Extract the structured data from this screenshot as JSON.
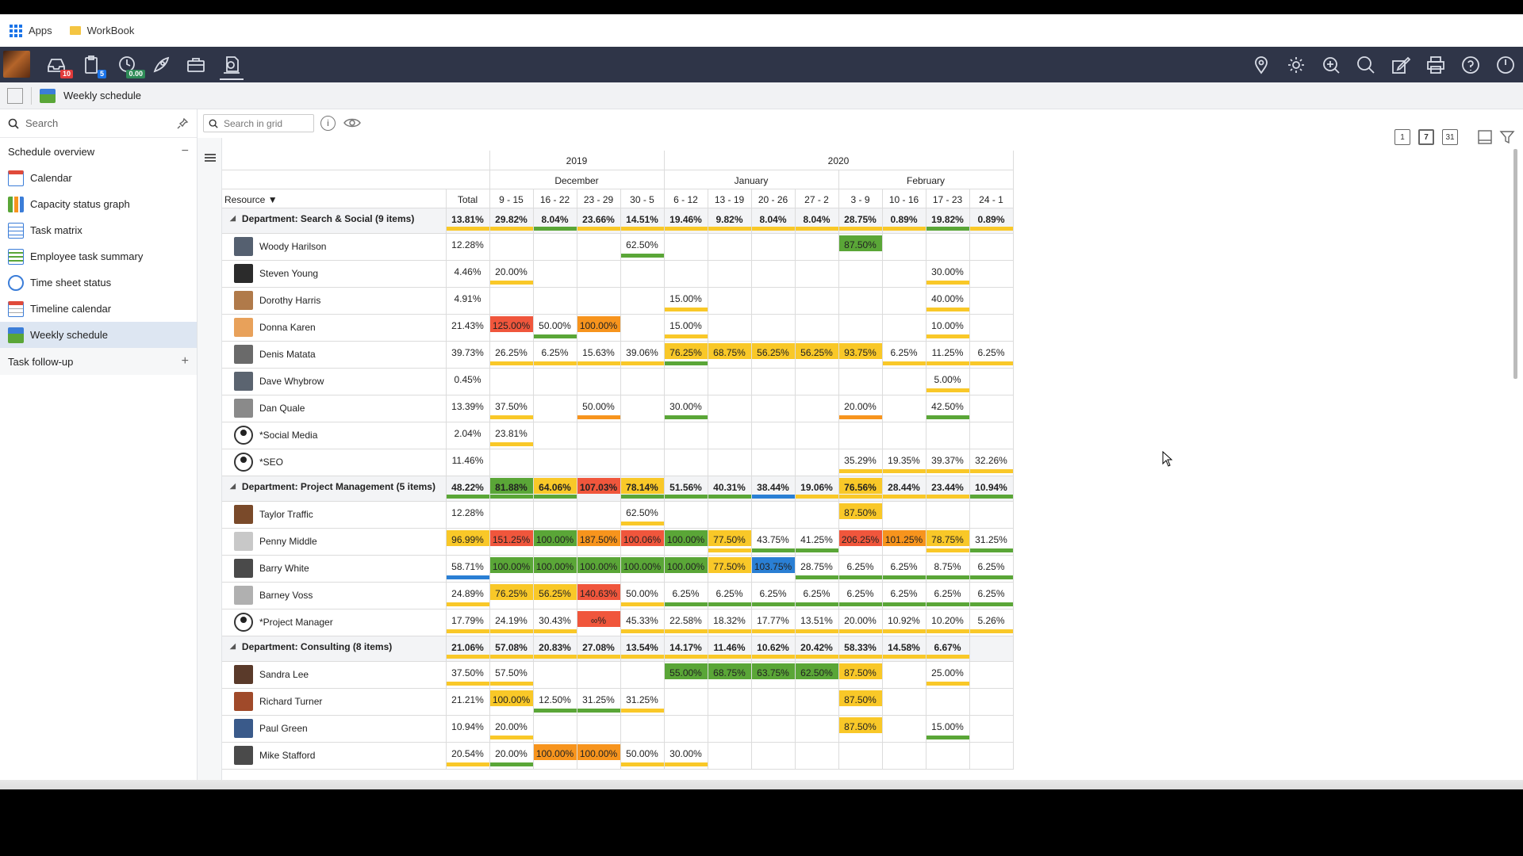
{
  "bookmarks": {
    "apps": "Apps",
    "workbook": "WorkBook"
  },
  "topbar": {
    "badges": [
      {
        "icon": "inbox-icon",
        "value": "10",
        "color": "#e03a3a"
      },
      {
        "icon": "clipboard-icon",
        "value": "5",
        "color": "#1a73e8"
      },
      {
        "icon": "clock-icon",
        "value": "0.00",
        "color": "#2e8b57"
      }
    ],
    "left_icons": [
      "rocket-icon",
      "briefcase-icon",
      "timesheet-icon"
    ],
    "right_icons": [
      "location-icon",
      "settings-icon",
      "search-plus-icon",
      "search-icon",
      "edit-icon",
      "print-icon",
      "help-icon",
      "power-icon"
    ]
  },
  "title": {
    "page": "Weekly schedule"
  },
  "sidebar": {
    "search_placeholder": "Search",
    "section": "Schedule overview",
    "items": [
      "Calendar",
      "Capacity status graph",
      "Task matrix",
      "Employee task summary",
      "Time sheet status",
      "Timeline calendar",
      "Weekly schedule"
    ],
    "active_index": 6,
    "followup": "Task follow-up"
  },
  "grid": {
    "search_placeholder": "Search in grid",
    "view_buttons": [
      "1",
      "7",
      "31"
    ]
  },
  "colors": {
    "green": "#5aa637",
    "yellow": "#f9c828",
    "orange": "#f7941d",
    "red": "#f0563c",
    "blue": "#2a7fd4"
  },
  "schedule": {
    "years": [
      {
        "label": "2019",
        "span": 4
      },
      {
        "label": "2020",
        "span": 8
      }
    ],
    "months": [
      {
        "label": "December",
        "span": 4
      },
      {
        "label": "January",
        "span": 4
      },
      {
        "label": "February",
        "span": 4
      }
    ],
    "resource_label": "Resource",
    "total_label": "Total",
    "weeks": [
      "9 - 15",
      "16 - 22",
      "23 - 29",
      "30 - 5",
      "6 - 12",
      "13 - 19",
      "20 - 26",
      "27 - 2",
      "3 - 9",
      "10 - 16",
      "17 - 23",
      "24 - 1"
    ],
    "rows": [
      {
        "type": "dept",
        "name": "Department: Search & Social (9 items)",
        "total": "13.81%",
        "cells": [
          "29.82%",
          "8.04%",
          "23.66%",
          "14.51%",
          "19.46%",
          "9.82%",
          "8.04%",
          "8.04%",
          "28.75%",
          "0.89%",
          "19.82%",
          "0.89%"
        ],
        "bars": [
          "yellow",
          "green",
          "yellow",
          "yellow",
          "yellow",
          "yellow",
          "yellow",
          "yellow",
          "yellow",
          "yellow",
          "green",
          "yellow"
        ],
        "totalbar": "yellow"
      },
      {
        "type": "res",
        "name": "Woody Harilson",
        "avatar": "#556070",
        "total": "12.28%",
        "cells": [
          "",
          "",
          "",
          "62.50%",
          "",
          "",
          "",
          "",
          "87.50%",
          "",
          "",
          ""
        ],
        "bars": [
          "",
          "",
          "",
          "green",
          "",
          "",
          "",
          "",
          "",
          "",
          "",
          ""
        ],
        "fills": [
          "",
          "",
          "",
          "",
          "",
          "",
          "",
          "",
          "green",
          "",
          "",
          ""
        ]
      },
      {
        "type": "res",
        "name": "Steven Young",
        "avatar": "#2b2b2b",
        "total": "4.46%",
        "cells": [
          "20.00%",
          "",
          "",
          "",
          "",
          "",
          "",
          "",
          "",
          "",
          "30.00%",
          ""
        ],
        "bars": [
          "yellow",
          "",
          "",
          "",
          "",
          "",
          "",
          "",
          "",
          "",
          "yellow",
          ""
        ]
      },
      {
        "type": "res",
        "name": "Dorothy Harris",
        "avatar": "#b07a4a",
        "total": "4.91%",
        "cells": [
          "",
          "",
          "",
          "",
          "15.00%",
          "",
          "",
          "",
          "",
          "",
          "40.00%",
          ""
        ],
        "bars": [
          "",
          "",
          "",
          "",
          "yellow",
          "",
          "",
          "",
          "",
          "",
          "yellow",
          ""
        ]
      },
      {
        "type": "res",
        "name": "Donna Karen",
        "avatar": "#e8a15a",
        "total": "21.43%",
        "cells": [
          "125.00%",
          "50.00%",
          "100.00%",
          "",
          "15.00%",
          "",
          "",
          "",
          "",
          "",
          "10.00%",
          ""
        ],
        "bars": [
          "",
          "green",
          "",
          "",
          "yellow",
          "",
          "",
          "",
          "",
          "",
          "yellow",
          ""
        ],
        "fills": [
          "red",
          "",
          "orange",
          "",
          "",
          "",
          "",
          "",
          "",
          "",
          "",
          ""
        ]
      },
      {
        "type": "res",
        "name": "Denis Matata",
        "avatar": "#6a6a6a",
        "total": "39.73%",
        "cells": [
          "26.25%",
          "6.25%",
          "15.63%",
          "39.06%",
          "76.25%",
          "68.75%",
          "56.25%",
          "56.25%",
          "93.75%",
          "6.25%",
          "11.25%",
          "6.25%"
        ],
        "bars": [
          "yellow",
          "yellow",
          "yellow",
          "yellow",
          "green",
          "",
          "",
          "",
          "",
          "yellow",
          "yellow",
          "yellow"
        ],
        "fills": [
          "",
          "",
          "",
          "",
          "yellow",
          "yellow",
          "yellow",
          "yellow",
          "yellow",
          "",
          "",
          ""
        ]
      },
      {
        "type": "res",
        "name": "Dave Whybrow",
        "avatar": "#5b6470",
        "total": "0.45%",
        "cells": [
          "",
          "",
          "",
          "",
          "",
          "",
          "",
          "",
          "",
          "",
          "5.00%",
          ""
        ],
        "bars": [
          "",
          "",
          "",
          "",
          "",
          "",
          "",
          "",
          "",
          "",
          "yellow",
          ""
        ]
      },
      {
        "type": "res",
        "name": "Dan Quale",
        "avatar": "#8a8a8a",
        "total": "13.39%",
        "cells": [
          "37.50%",
          "",
          "50.00%",
          "",
          "30.00%",
          "",
          "",
          "",
          "20.00%",
          "",
          "42.50%",
          ""
        ],
        "bars": [
          "yellow",
          "",
          "orange",
          "",
          "green",
          "",
          "",
          "",
          "orange",
          "",
          "green",
          ""
        ]
      },
      {
        "type": "res",
        "name": "*Social Media",
        "avatar": "generic",
        "total": "2.04%",
        "cells": [
          "23.81%",
          "",
          "",
          "",
          "",
          "",
          "",
          "",
          "",
          "",
          "",
          ""
        ],
        "bars": [
          "yellow",
          "",
          "",
          "",
          "",
          "",
          "",
          "",
          "",
          "",
          "",
          ""
        ]
      },
      {
        "type": "res",
        "name": "*SEO",
        "avatar": "generic",
        "total": "11.46%",
        "cells": [
          "",
          "",
          "",
          "",
          "",
          "",
          "",
          "",
          "35.29%",
          "19.35%",
          "39.37%",
          "32.26%"
        ],
        "bars": [
          "",
          "",
          "",
          "",
          "",
          "",
          "",
          "",
          "yellow",
          "yellow",
          "yellow",
          "yellow"
        ]
      },
      {
        "type": "dept",
        "name": "Department: Project Management (5 items)",
        "total": "48.22%",
        "cells": [
          "81.88%",
          "64.06%",
          "107.03%",
          "78.14%",
          "51.56%",
          "40.31%",
          "38.44%",
          "19.06%",
          "76.56%",
          "28.44%",
          "23.44%",
          "10.94%"
        ],
        "bars": [
          "green",
          "green",
          "",
          "green",
          "green",
          "green",
          "blue",
          "yellow",
          "yellow",
          "yellow",
          "yellow",
          "green"
        ],
        "fills": [
          "green",
          "yellow",
          "red",
          "yellow",
          "",
          "",
          "",
          "",
          "yellow",
          "",
          "",
          ""
        ],
        "totalbar": "green"
      },
      {
        "type": "res",
        "name": "Taylor Traffic",
        "avatar": "#7a4a2a",
        "total": "12.28%",
        "cells": [
          "",
          "",
          "",
          "62.50%",
          "",
          "",
          "",
          "",
          "87.50%",
          "",
          "",
          ""
        ],
        "bars": [
          "",
          "",
          "",
          "yellow",
          "",
          "",
          "",
          "",
          "",
          "",
          "",
          ""
        ],
        "fills": [
          "",
          "",
          "",
          "",
          "",
          "",
          "",
          "",
          "yellow",
          "",
          "",
          ""
        ]
      },
      {
        "type": "res",
        "name": "Penny Middle",
        "avatar": "#c8c8c8",
        "total": "96.99%",
        "cells": [
          "151.25%",
          "100.00%",
          "187.50%",
          "100.06%",
          "100.00%",
          "77.50%",
          "43.75%",
          "41.25%",
          "206.25%",
          "101.25%",
          "78.75%",
          "31.25%"
        ],
        "bars": [
          "",
          "",
          "",
          "",
          "",
          "yellow",
          "green",
          "green",
          "",
          "",
          "yellow",
          "green"
        ],
        "fills": [
          "red",
          "green",
          "orange",
          "red",
          "green",
          "yellow",
          "",
          "",
          "red",
          "orange",
          "yellow",
          ""
        ],
        "totalfill": "yellow"
      },
      {
        "type": "res",
        "name": "Barry White",
        "avatar": "#4a4a4a",
        "total": "58.71%",
        "cells": [
          "100.00%",
          "100.00%",
          "100.00%",
          "100.00%",
          "100.00%",
          "77.50%",
          "103.75%",
          "28.75%",
          "6.25%",
          "6.25%",
          "8.75%",
          "6.25%"
        ],
        "bars": [
          "",
          "",
          "",
          "",
          "",
          "",
          "",
          "green",
          "green",
          "green",
          "green",
          "green"
        ],
        "fills": [
          "green",
          "green",
          "green",
          "green",
          "green",
          "yellow",
          "blue",
          "",
          "",
          "",
          "",
          ""
        ],
        "totalbar": "blue"
      },
      {
        "type": "res",
        "name": "Barney Voss",
        "avatar": "#b0b0b0",
        "total": "24.89%",
        "cells": [
          "76.25%",
          "56.25%",
          "140.63%",
          "50.00%",
          "6.25%",
          "6.25%",
          "6.25%",
          "6.25%",
          "6.25%",
          "6.25%",
          "6.25%",
          "6.25%"
        ],
        "bars": [
          "",
          "",
          "",
          "yellow",
          "green",
          "green",
          "green",
          "green",
          "green",
          "green",
          "green",
          "green"
        ],
        "fills": [
          "yellow",
          "yellow",
          "red",
          "",
          "",
          "",
          "",
          "",
          "",
          "",
          "",
          ""
        ],
        "totalbar": "yellow"
      },
      {
        "type": "res",
        "name": "*Project Manager",
        "avatar": "generic",
        "total": "17.79%",
        "cells": [
          "24.19%",
          "30.43%",
          "∞%",
          "45.33%",
          "22.58%",
          "18.32%",
          "17.77%",
          "13.51%",
          "20.00%",
          "10.92%",
          "10.20%",
          "5.26%"
        ],
        "bars": [
          "yellow",
          "yellow",
          "",
          "yellow",
          "yellow",
          "yellow",
          "yellow",
          "yellow",
          "yellow",
          "yellow",
          "yellow",
          "yellow"
        ],
        "fills": [
          "",
          "",
          "red",
          "",
          "",
          "",
          "",
          "",
          "",
          "",
          "",
          ""
        ],
        "totalbar": "yellow"
      },
      {
        "type": "dept",
        "name": "Department: Consulting (8 items)",
        "total": "21.06%",
        "cells": [
          "57.08%",
          "20.83%",
          "27.08%",
          "13.54%",
          "14.17%",
          "11.46%",
          "10.62%",
          "20.42%",
          "58.33%",
          "14.58%",
          "6.67%",
          ""
        ],
        "bars": [
          "yellow",
          "yellow",
          "yellow",
          "yellow",
          "yellow",
          "yellow",
          "yellow",
          "yellow",
          "yellow",
          "yellow",
          "yellow",
          ""
        ],
        "totalbar": "yellow"
      },
      {
        "type": "res",
        "name": "Sandra Lee",
        "avatar": "#5a3a2a",
        "total": "37.50%",
        "cells": [
          "57.50%",
          "",
          "",
          "",
          "55.00%",
          "68.75%",
          "63.75%",
          "62.50%",
          "87.50%",
          "",
          "25.00%",
          ""
        ],
        "bars": [
          "yellow",
          "",
          "",
          "",
          "",
          "",
          "",
          "",
          "",
          "",
          "yellow",
          ""
        ],
        "fills": [
          "",
          "",
          "",
          "",
          "green",
          "green",
          "green",
          "green",
          "yellow",
          "",
          "",
          ""
        ],
        "totalbar": "yellow"
      },
      {
        "type": "res",
        "name": "Richard Turner",
        "avatar": "#a04a2a",
        "total": "21.21%",
        "cells": [
          "100.00%",
          "12.50%",
          "31.25%",
          "31.25%",
          "",
          "",
          "",
          "",
          "87.50%",
          "",
          "",
          ""
        ],
        "bars": [
          "",
          "green",
          "green",
          "yellow",
          "",
          "",
          "",
          "",
          "",
          "",
          "",
          ""
        ],
        "fills": [
          "yellow",
          "",
          "",
          "",
          "",
          "",
          "",
          "",
          "yellow",
          "",
          "",
          ""
        ]
      },
      {
        "type": "res",
        "name": "Paul Green",
        "avatar": "#3a5a8a",
        "total": "10.94%",
        "cells": [
          "20.00%",
          "",
          "",
          "",
          "",
          "",
          "",
          "",
          "87.50%",
          "",
          "15.00%",
          ""
        ],
        "bars": [
          "yellow",
          "",
          "",
          "",
          "",
          "",
          "",
          "",
          "",
          "",
          "green",
          ""
        ],
        "fills": [
          "",
          "",
          "",
          "",
          "",
          "",
          "",
          "",
          "yellow",
          "",
          "",
          ""
        ]
      },
      {
        "type": "res",
        "name": "Mike Stafford",
        "avatar": "#4a4a4a",
        "total": "20.54%",
        "cells": [
          "20.00%",
          "100.00%",
          "100.00%",
          "50.00%",
          "30.00%",
          "",
          "",
          "",
          "",
          "",
          "",
          ""
        ],
        "bars": [
          "green",
          "",
          "",
          "yellow",
          "yellow",
          "",
          "",
          "",
          "",
          "",
          "",
          ""
        ],
        "fills": [
          "",
          "orange",
          "orange",
          "",
          "",
          "",
          "",
          "",
          "",
          "",
          "",
          ""
        ],
        "totalbar": "yellow"
      }
    ]
  }
}
